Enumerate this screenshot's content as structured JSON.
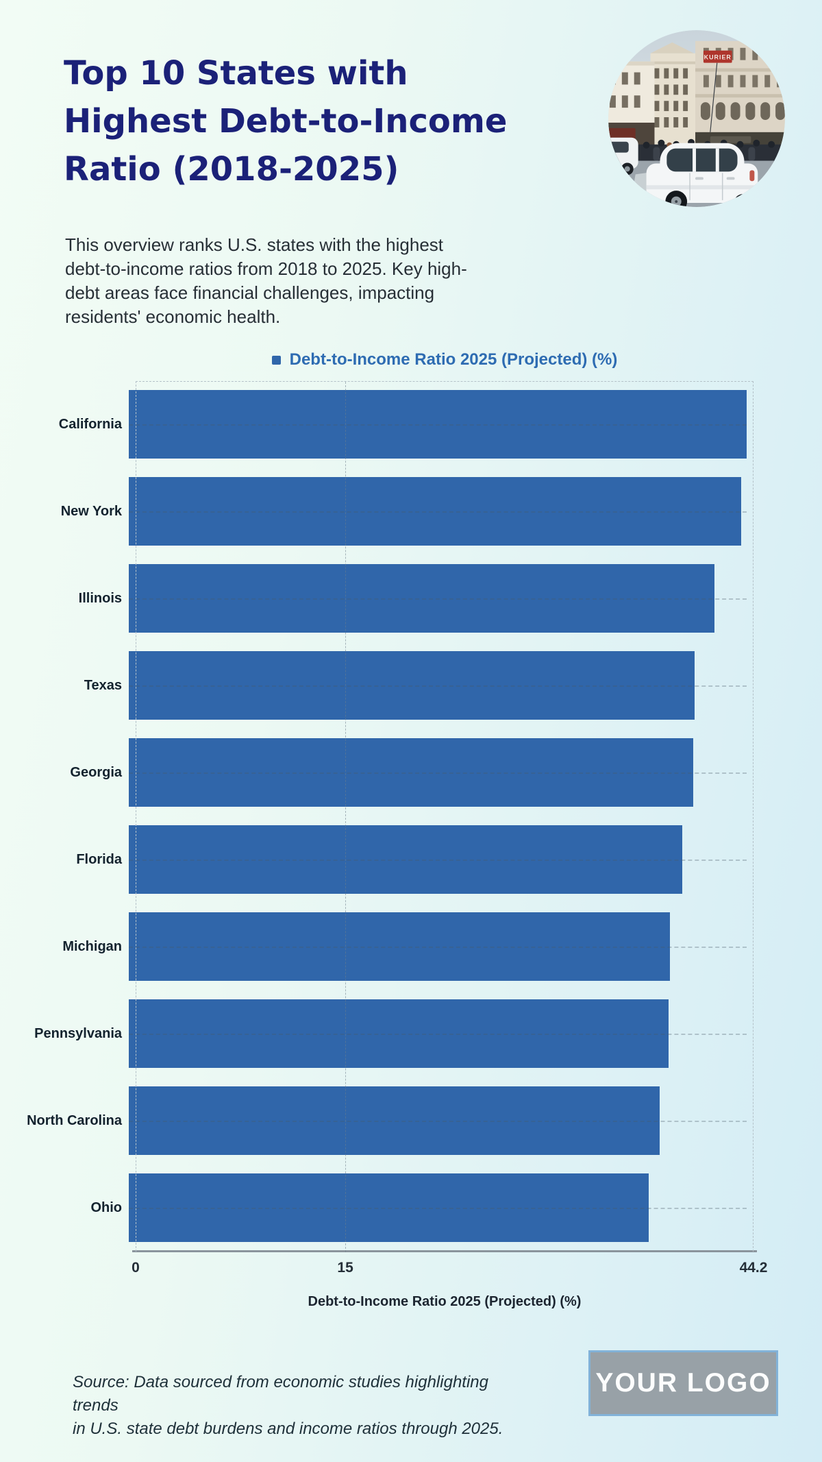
{
  "page": {
    "title": "Top 10 States with\nHighest Debt-to-Income\nRatio (2018-2025)",
    "description": "This overview ranks U.S. states with the highest\ndebt-to-income ratios from 2018 to 2025. Key high-\ndebt areas face financial challenges, impacting\nresidents' economic health.",
    "source": "Source: Data sourced from economic studies highlighting trends\nin U.S. state debt burdens and income ratios through 2025.",
    "logo_text": "YOUR LOGO"
  },
  "photo": {
    "alt": "city-street-photo",
    "sign_text": "KURIER"
  },
  "chart_data": {
    "type": "bar",
    "orientation": "horizontal",
    "legend": "Debt-to-Income Ratio 2025 (Projected) (%)",
    "xlabel": "Debt-to-Income Ratio 2025 (Projected) (%)",
    "categories": [
      "California",
      "New York",
      "Illinois",
      "Texas",
      "Georgia",
      "Florida",
      "Michigan",
      "Pennsylvania",
      "North Carolina",
      "Ohio"
    ],
    "values": [
      44.2,
      43.8,
      41.9,
      40.5,
      40.4,
      39.6,
      38.7,
      38.6,
      38.0,
      37.2
    ],
    "xlim": [
      0,
      44.2
    ],
    "xticks": [
      0,
      15,
      44.2
    ],
    "xtick_labels": [
      "0",
      "15",
      "44.2"
    ],
    "grid": "dashed",
    "legend_position": "top-center",
    "bar_color": "#3066aa"
  },
  "colors": {
    "title": "#1b2178",
    "legend_text": "#2e6cb2",
    "bar": "#3066aa",
    "background_start": "#f2fcf5",
    "background_end": "#d3ecf5",
    "axis_line": "#8a949c",
    "logo_background": "#98a1a7",
    "logo_border": "#82b2d8"
  }
}
